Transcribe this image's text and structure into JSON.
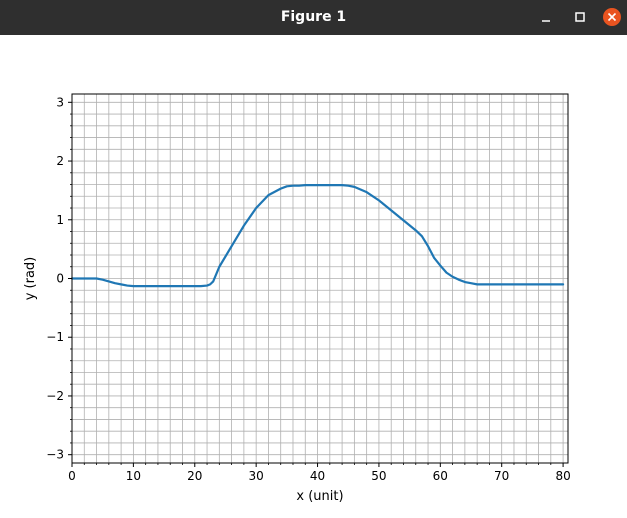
{
  "window": {
    "title": "Figure 1",
    "titlebar_color": "#2f2f2f",
    "close_button_color": "#e95420",
    "buttons": [
      "minimize-icon",
      "maximize-icon",
      "close-icon"
    ]
  },
  "chart_data": {
    "type": "line",
    "title": "",
    "xlabel": "x (unit)",
    "ylabel": "y (rad)",
    "xlim": [
      0,
      80.8
    ],
    "ylim": [
      -3.1416,
      3.1416
    ],
    "xticks": [
      0,
      10,
      20,
      30,
      40,
      50,
      60,
      70,
      80
    ],
    "yticks": [
      -3,
      -2,
      -1,
      0,
      1,
      2,
      3
    ],
    "grid": true,
    "minor_grid": true,
    "minor_step_x": 2,
    "minor_step_y": 0.2,
    "line_color": "#1f77b4",
    "grid_color": "#b0b0b0",
    "series": [
      {
        "x": [
          0,
          4,
          5,
          6,
          7,
          8,
          9,
          10,
          12,
          15,
          20,
          21,
          22,
          22.5,
          23,
          24,
          26,
          28,
          30,
          32,
          34,
          35,
          36,
          37,
          38,
          40,
          42,
          44,
          45,
          46,
          48,
          50,
          52,
          54,
          56,
          57,
          58,
          59,
          60,
          61,
          62,
          63,
          64,
          65,
          66,
          67,
          70,
          75,
          80
        ],
        "y": [
          0,
          0,
          -0.02,
          -0.05,
          -0.08,
          -0.1,
          -0.12,
          -0.13,
          -0.13,
          -0.13,
          -0.13,
          -0.13,
          -0.12,
          -0.1,
          -0.05,
          0.2,
          0.55,
          0.9,
          1.2,
          1.42,
          1.53,
          1.57,
          1.58,
          1.58,
          1.59,
          1.59,
          1.59,
          1.59,
          1.58,
          1.56,
          1.47,
          1.33,
          1.16,
          0.99,
          0.82,
          0.72,
          0.55,
          0.35,
          0.22,
          0.1,
          0.03,
          -0.02,
          -0.06,
          -0.08,
          -0.1,
          -0.1,
          -0.1,
          -0.1,
          -0.1
        ]
      }
    ]
  }
}
